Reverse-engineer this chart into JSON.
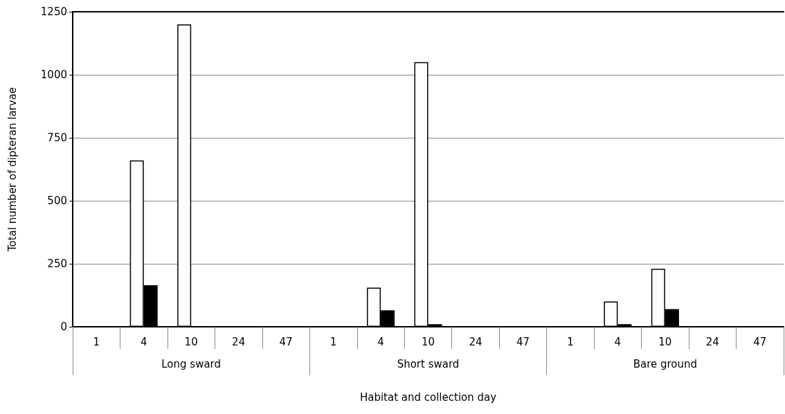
{
  "chart_data": {
    "type": "bar",
    "xlabel": "Habitat and collection day",
    "ylabel": "Total number of dipteran larvae",
    "categories": [
      "1",
      "4",
      "10",
      "24",
      "47",
      "1",
      "4",
      "10",
      "24",
      "47",
      "1",
      "4",
      "10",
      "24",
      "47"
    ],
    "annotations": [
      "Long sward",
      "Short sward",
      "Bare ground"
    ],
    "series": [
      {
        "color": "#ffffff",
        "values": [
          null,
          660,
          1200,
          null,
          null,
          null,
          155,
          1050,
          null,
          null,
          null,
          100,
          230,
          null,
          null
        ]
      },
      {
        "color": "#000000",
        "values": [
          null,
          165,
          null,
          null,
          null,
          null,
          65,
          10,
          null,
          null,
          null,
          10,
          70,
          null,
          null
        ]
      }
    ],
    "ylim": [
      0,
      1250
    ],
    "yticks": [
      0,
      250,
      500,
      750,
      1000,
      1250
    ],
    "grid": "y"
  }
}
